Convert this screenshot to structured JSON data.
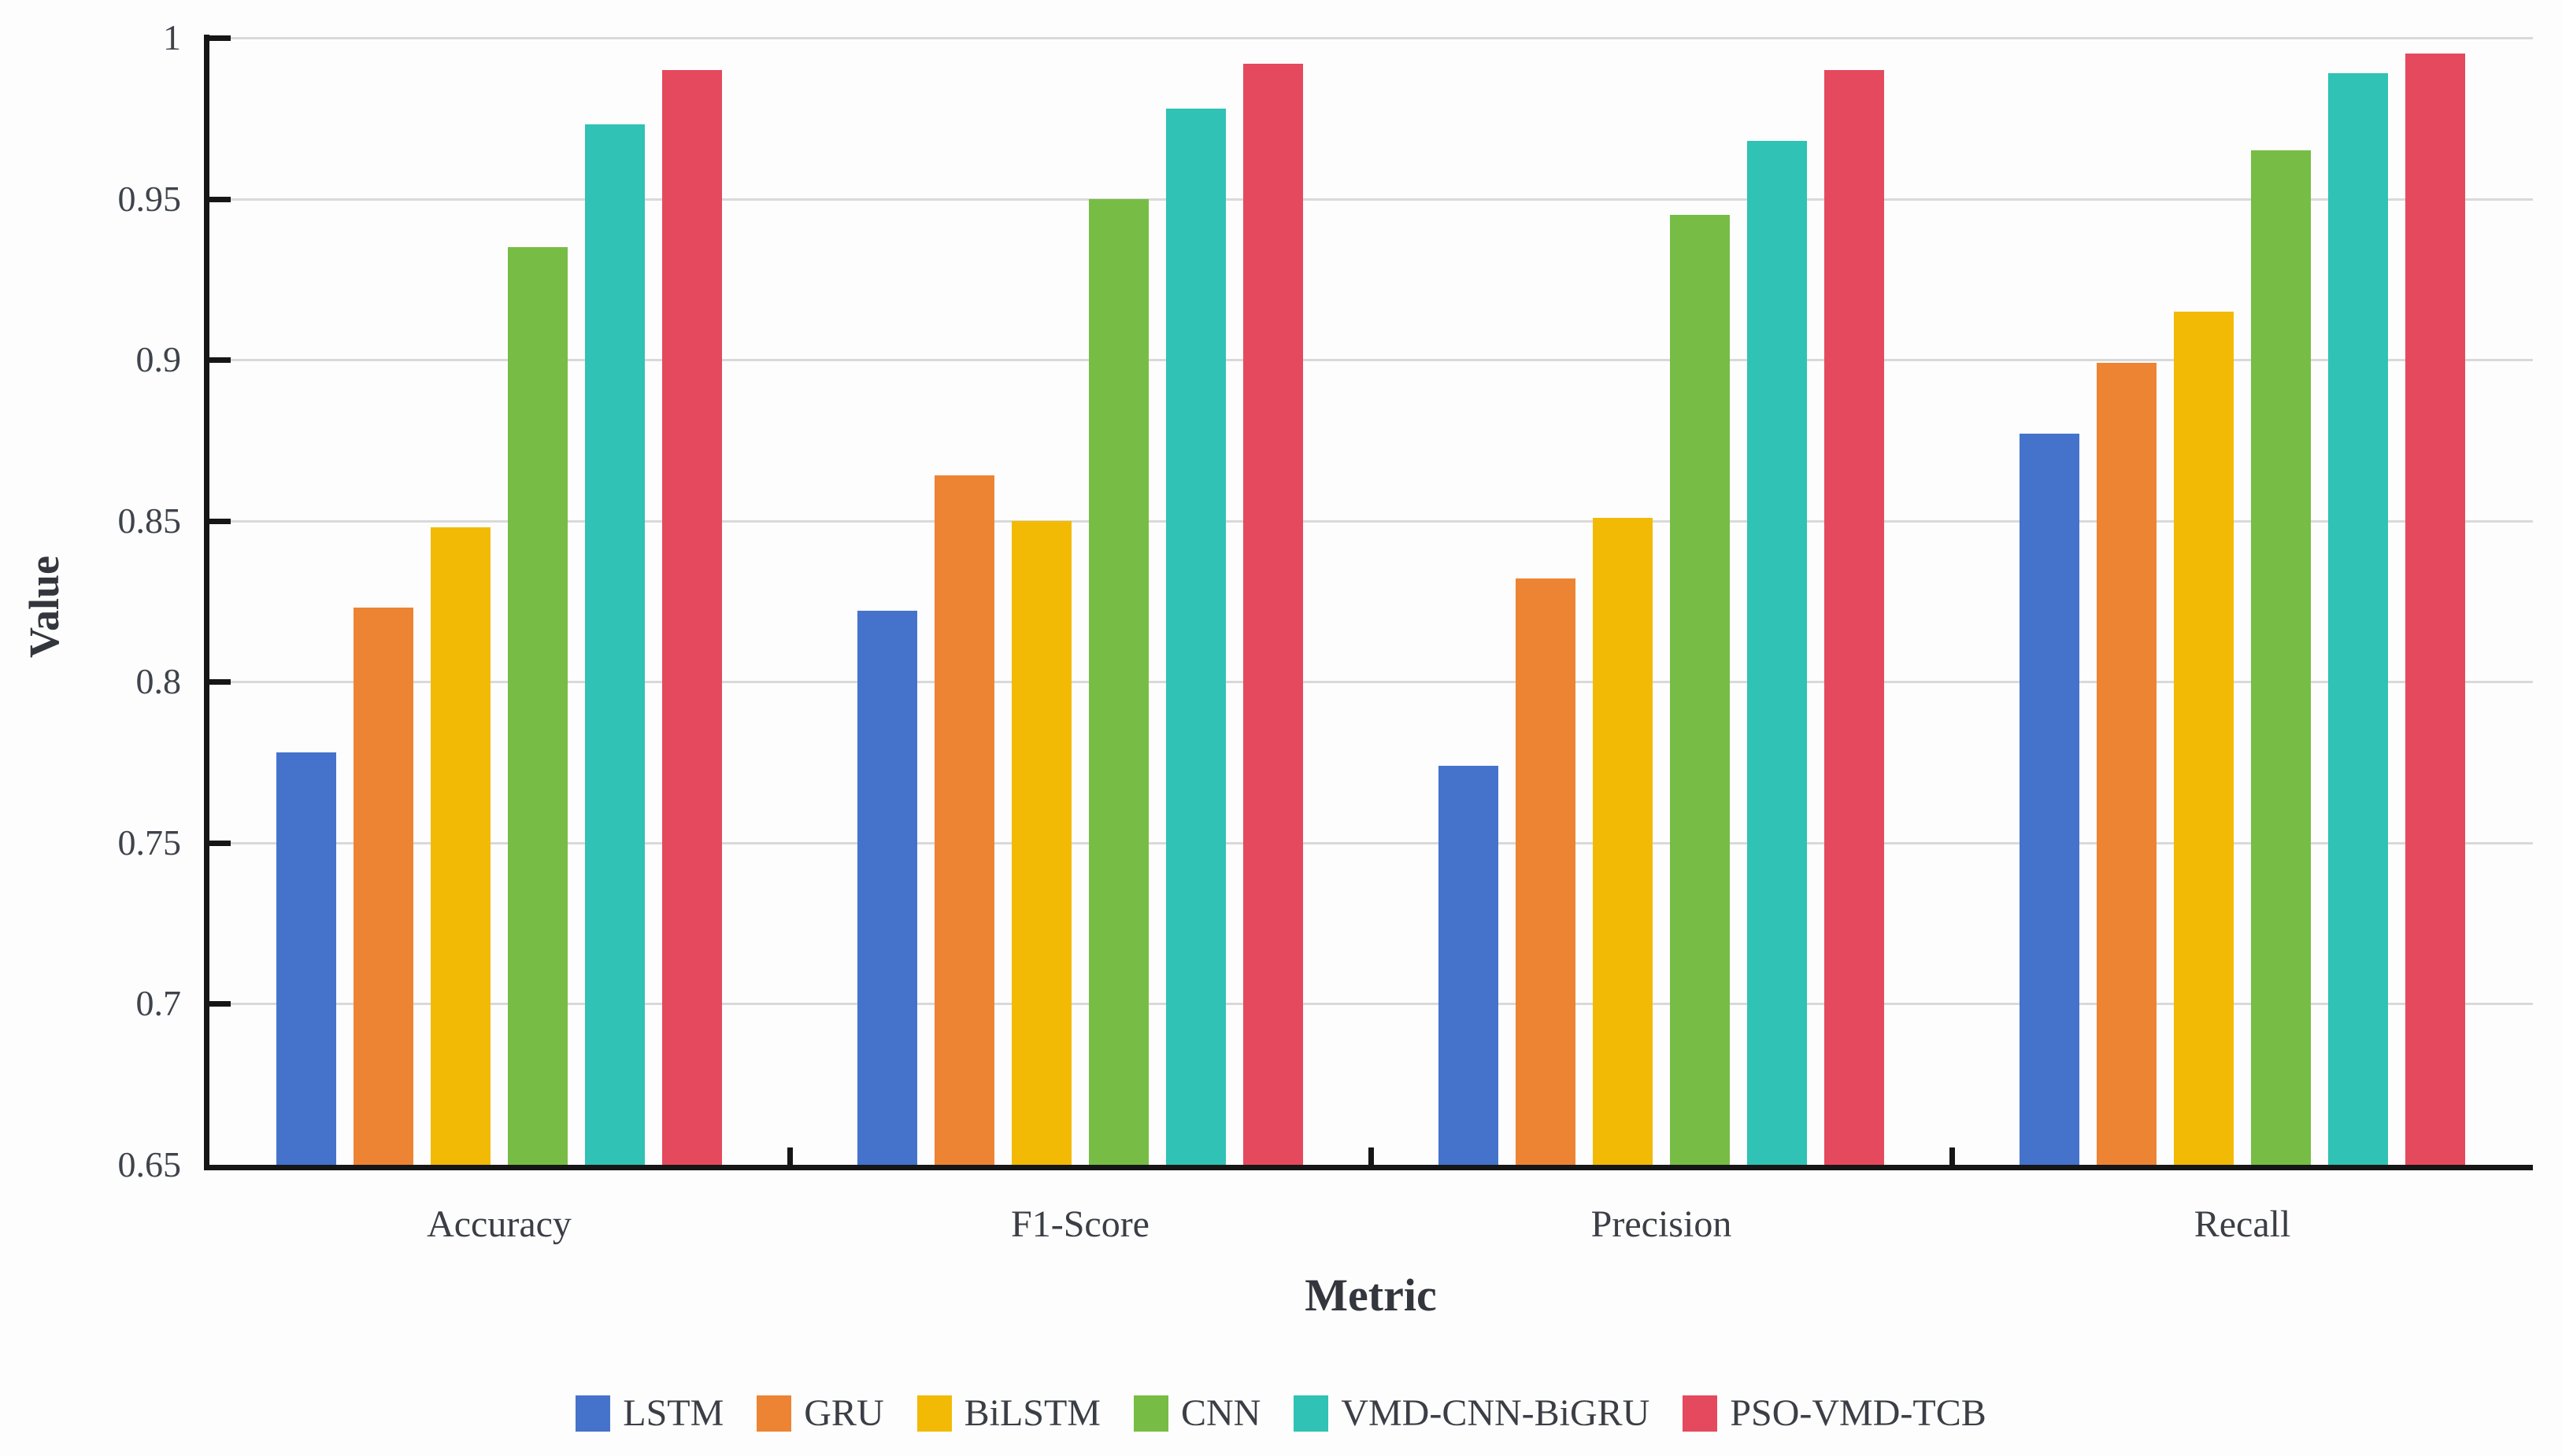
{
  "chart_data": {
    "type": "bar",
    "title": "",
    "xlabel": "Metric",
    "ylabel": "Value",
    "categories": [
      "Accuracy",
      "F1-Score",
      "Precision",
      "Recall"
    ],
    "series": [
      {
        "name": "LSTM",
        "color": "#4573CB",
        "values": [
          0.778,
          0.822,
          0.774,
          0.877
        ]
      },
      {
        "name": "GRU",
        "color": "#ED8434",
        "values": [
          0.823,
          0.864,
          0.832,
          0.899
        ]
      },
      {
        "name": "BiLSTM",
        "color": "#F2BA05",
        "values": [
          0.848,
          0.85,
          0.851,
          0.915
        ]
      },
      {
        "name": "CNN",
        "color": "#77BD45",
        "values": [
          0.935,
          0.95,
          0.945,
          0.965
        ]
      },
      {
        "name": "VMD-CNN-BiGRU",
        "color": "#2FC2B5",
        "values": [
          0.973,
          0.978,
          0.968,
          0.989
        ]
      },
      {
        "name": "PSO-VMD-TCB",
        "color": "#E5495E",
        "values": [
          0.99,
          0.992,
          0.99,
          0.995
        ]
      }
    ],
    "ylim": [
      0.65,
      1.0
    ],
    "yticks": [
      0.65,
      0.7,
      0.75,
      0.8,
      0.85,
      0.9,
      0.95,
      1
    ],
    "ytick_labels": [
      "0.65",
      "0.7",
      "0.75",
      "0.8",
      "0.85",
      "0.9",
      "0.95",
      "1"
    ],
    "grid": true,
    "legend_position": "bottom",
    "colors": {
      "gridline": "#d9d9d9",
      "axis": "#161616",
      "tick_text": "#3f434b",
      "background": "#fdfdfd"
    }
  }
}
